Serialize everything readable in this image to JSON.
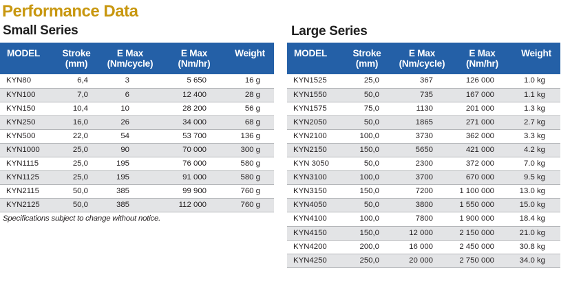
{
  "title": "Performance Data",
  "small_series": {
    "title": "Small Series",
    "headers": {
      "model": "MODEL",
      "stroke": [
        "Stroke",
        "(mm)"
      ],
      "emax_cycle": [
        "E Max",
        "(Nm/cycle)"
      ],
      "emax_hr": [
        "E Max",
        "(Nm/hr)"
      ],
      "weight": "Weight"
    },
    "rows": [
      {
        "model": "KYN80",
        "stroke": "6,4",
        "emax_cycle": "3",
        "emax_hr": "5 650",
        "weight": "16 g"
      },
      {
        "model": "KYN100",
        "stroke": "7,0",
        "emax_cycle": "6",
        "emax_hr": "12 400",
        "weight": "28 g"
      },
      {
        "model": "KYN150",
        "stroke": "10,4",
        "emax_cycle": "10",
        "emax_hr": "28 200",
        "weight": "56 g"
      },
      {
        "model": "KYN250",
        "stroke": "16,0",
        "emax_cycle": "26",
        "emax_hr": "34 000",
        "weight": "68 g"
      },
      {
        "model": "KYN500",
        "stroke": "22,0",
        "emax_cycle": "54",
        "emax_hr": "53 700",
        "weight": "136 g"
      },
      {
        "model": "KYN1000",
        "stroke": "25,0",
        "emax_cycle": "90",
        "emax_hr": "70 000",
        "weight": "300 g"
      },
      {
        "model": "KYN1115",
        "stroke": "25,0",
        "emax_cycle": "195",
        "emax_hr": "76 000",
        "weight": "580 g"
      },
      {
        "model": "KYN1125",
        "stroke": "25,0",
        "emax_cycle": "195",
        "emax_hr": "91 000",
        "weight": "580 g"
      },
      {
        "model": "KYN2115",
        "stroke": "50,0",
        "emax_cycle": "385",
        "emax_hr": "99 900",
        "weight": "760 g"
      },
      {
        "model": "KYN2125",
        "stroke": "50,0",
        "emax_cycle": "385",
        "emax_hr": "112 000",
        "weight": "760 g"
      }
    ]
  },
  "large_series": {
    "title": "Large Series",
    "headers": {
      "model": "MODEL",
      "stroke": [
        "Stroke",
        "(mm)"
      ],
      "emax_cycle": [
        "E Max",
        "(Nm/cycle)"
      ],
      "emax_hr": [
        "E Max",
        "(Nm/hr)"
      ],
      "weight": "Weight"
    },
    "rows": [
      {
        "model": "KYN1525",
        "stroke": "25,0",
        "emax_cycle": "367",
        "emax_hr": "126 000",
        "weight": "1.0 kg"
      },
      {
        "model": "KYN1550",
        "stroke": "50,0",
        "emax_cycle": "735",
        "emax_hr": "167 000",
        "weight": "1.1 kg"
      },
      {
        "model": "KYN1575",
        "stroke": "75,0",
        "emax_cycle": "1130",
        "emax_hr": "201 000",
        "weight": "1.3 kg"
      },
      {
        "model": "KYN2050",
        "stroke": "50,0",
        "emax_cycle": "1865",
        "emax_hr": "271 000",
        "weight": "2.7 kg"
      },
      {
        "model": "KYN2100",
        "stroke": "100,0",
        "emax_cycle": "3730",
        "emax_hr": "362 000",
        "weight": "3.3 kg"
      },
      {
        "model": "KYN2150",
        "stroke": "150,0",
        "emax_cycle": "5650",
        "emax_hr": "421 000",
        "weight": "4.2 kg"
      },
      {
        "model": "KYN 3050",
        "stroke": "50,0",
        "emax_cycle": "2300",
        "emax_hr": "372 000",
        "weight": "7.0 kg"
      },
      {
        "model": "KYN3100",
        "stroke": "100,0",
        "emax_cycle": "3700",
        "emax_hr": "670 000",
        "weight": "9.5 kg"
      },
      {
        "model": "KYN3150",
        "stroke": "150,0",
        "emax_cycle": "7200",
        "emax_hr": "1 100 000",
        "weight": "13.0 kg"
      },
      {
        "model": "KYN4050",
        "stroke": "50,0",
        "emax_cycle": "3800",
        "emax_hr": "1 550 000",
        "weight": "15.0 kg"
      },
      {
        "model": "KYN4100",
        "stroke": "100,0",
        "emax_cycle": "7800",
        "emax_hr": "1 900 000",
        "weight": "18.4 kg"
      },
      {
        "model": "KYN4150",
        "stroke": "150,0",
        "emax_cycle": "12 000",
        "emax_hr": "2 150 000",
        "weight": "21.0 kg"
      },
      {
        "model": "KYN4200",
        "stroke": "200,0",
        "emax_cycle": "16 000",
        "emax_hr": "2 450 000",
        "weight": "30.8 kg"
      },
      {
        "model": "KYN4250",
        "stroke": "250,0",
        "emax_cycle": "20 000",
        "emax_hr": "2 750 000",
        "weight": "34.0 kg"
      }
    ]
  },
  "footnote": "Specifications subject to change without notice.",
  "colors": {
    "title": "#c8970f",
    "header_bg": "#2460a7",
    "header_text": "#ffffff",
    "stripe": "#e3e4e6",
    "rule": "#b4b6b9"
  }
}
